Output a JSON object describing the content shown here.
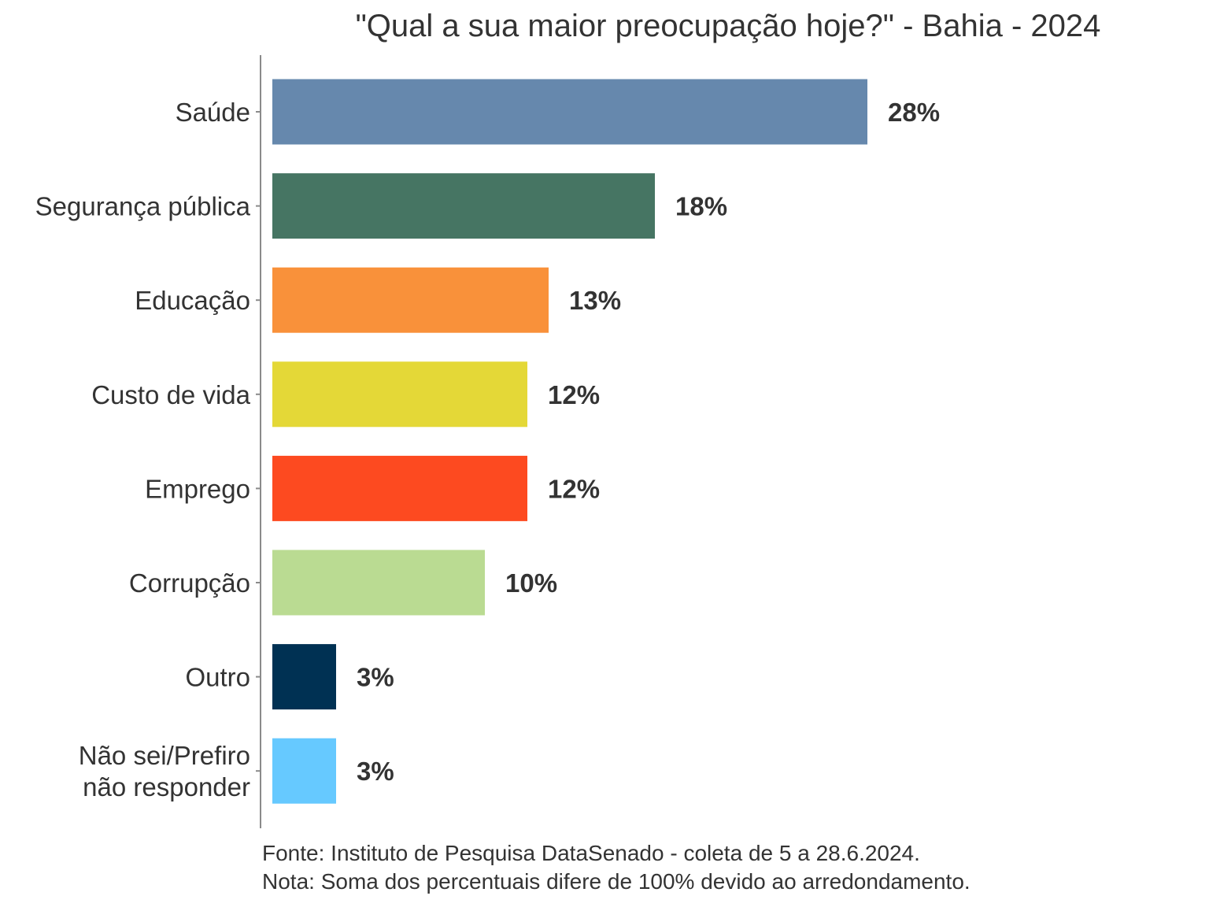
{
  "chart_data": {
    "type": "bar",
    "orientation": "horizontal",
    "title": "\"Qual a sua maior preocupação hoje?\" - Bahia - 2024",
    "categories": [
      "Saúde",
      "Segurança pública",
      "Educação",
      "Custo de vida",
      "Emprego",
      "Corrupção",
      "Outro",
      "Não sei/Prefiro não responder"
    ],
    "category_lines": [
      [
        "Saúde"
      ],
      [
        "Segurança pública"
      ],
      [
        "Educação"
      ],
      [
        "Custo de vida"
      ],
      [
        "Emprego"
      ],
      [
        "Corrupção"
      ],
      [
        "Outro"
      ],
      [
        "Não sei/Prefiro",
        "não responder"
      ]
    ],
    "values": [
      28,
      18,
      13,
      12,
      12,
      10,
      3,
      3
    ],
    "value_labels": [
      "28%",
      "18%",
      "13%",
      "12%",
      "12%",
      "10%",
      "3%",
      "3%"
    ],
    "colors": [
      "#6688ad",
      "#467563",
      "#f9913a",
      "#e4d837",
      "#fd4a20",
      "#badb92",
      "#003153",
      "#66c9ff"
    ],
    "unit": "%",
    "xlabel": "",
    "ylabel": "",
    "xlim": [
      0,
      28
    ],
    "grid": false,
    "legend": "none"
  },
  "caption": {
    "source": "Fonte: Instituto de Pesquisa DataSenado - coleta de 5 a 28.6.2024.",
    "note": "Nota: Soma dos percentuais difere de 100% devido ao arredondamento."
  }
}
